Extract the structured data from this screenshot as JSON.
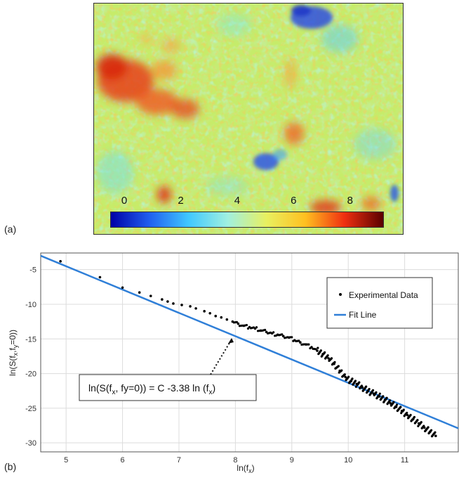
{
  "panel_a": {
    "label": "(a)",
    "colorbar": {
      "ticks": [
        "0",
        "2",
        "4",
        "6",
        "8"
      ],
      "tick_values": [
        0,
        2,
        4,
        6,
        8
      ],
      "range": [
        -0.5,
        9.2
      ],
      "colormap": [
        "#0000a8",
        "#2060f0",
        "#40c8ff",
        "#a0f0e0",
        "#e8f060",
        "#ffc020",
        "#f03010",
        "#5a0000"
      ]
    }
  },
  "panel_b": {
    "label": "(b)",
    "annotation": {
      "prefix": "ln(S(f",
      "sub1": "x",
      "middle": ", fy=0)) = C -3.38 ln (f",
      "sub2": "x",
      "suffix": ")"
    },
    "ylabel_parts": {
      "p1": "ln(S(f",
      "s1": "x",
      "p2": ",f",
      "s2": "y",
      "p3": "=0))"
    },
    "xlabel_parts": {
      "p1": "ln(f",
      "s1": "x",
      "p2": ")"
    }
  },
  "chart_data": {
    "type": "scatter",
    "title": "",
    "xlim": [
      4.55,
      11.95
    ],
    "ylim": [
      -31.3,
      -2.6
    ],
    "xticks": [
      5,
      6,
      7,
      8,
      9,
      10,
      11
    ],
    "yticks": [
      -5,
      -10,
      -15,
      -20,
      -25,
      -30
    ],
    "grid": true,
    "legend_placement": "top-right",
    "series": [
      {
        "name": "Experimental Data",
        "type": "scatter",
        "color": "#000000",
        "x": [
          4.9,
          5.6,
          6.0,
          6.3,
          6.5,
          6.7,
          6.8,
          6.9,
          7.05,
          7.2,
          7.3,
          7.45,
          7.55,
          7.65,
          7.75,
          7.85,
          7.95,
          8.05,
          8.15,
          8.25,
          8.35,
          8.45,
          8.55,
          8.65,
          8.75,
          8.85,
          8.95,
          9.05,
          9.15,
          9.25,
          9.35,
          9.45,
          9.55,
          9.65,
          9.75,
          9.85,
          9.95,
          10.05,
          10.15,
          10.25,
          10.35,
          10.45,
          10.55,
          10.65,
          10.75,
          10.85,
          10.95,
          11.05,
          11.15,
          11.25,
          11.35,
          11.45,
          11.55
        ],
        "y": [
          -3.8,
          -6.1,
          -7.6,
          -8.3,
          -8.8,
          -9.3,
          -9.6,
          -9.9,
          -10.1,
          -10.3,
          -10.6,
          -11.0,
          -11.3,
          -11.7,
          -11.9,
          -12.2,
          -12.5,
          -12.8,
          -13.1,
          -13.3,
          -13.5,
          -13.8,
          -14.0,
          -14.2,
          -14.4,
          -14.6,
          -14.8,
          -15.2,
          -15.5,
          -15.8,
          -16.2,
          -16.7,
          -17.2,
          -17.8,
          -18.6,
          -19.6,
          -20.5,
          -21.1,
          -21.5,
          -22.0,
          -22.5,
          -22.9,
          -23.3,
          -23.8,
          -24.3,
          -24.8,
          -25.4,
          -26.0,
          -26.6,
          -27.2,
          -27.8,
          -28.4,
          -29.0
        ]
      },
      {
        "name": "Fit Line",
        "type": "line",
        "color": "#2f7fd8",
        "x": [
          4.55,
          11.95
        ],
        "y": [
          -3.0,
          -27.9
        ]
      }
    ]
  }
}
